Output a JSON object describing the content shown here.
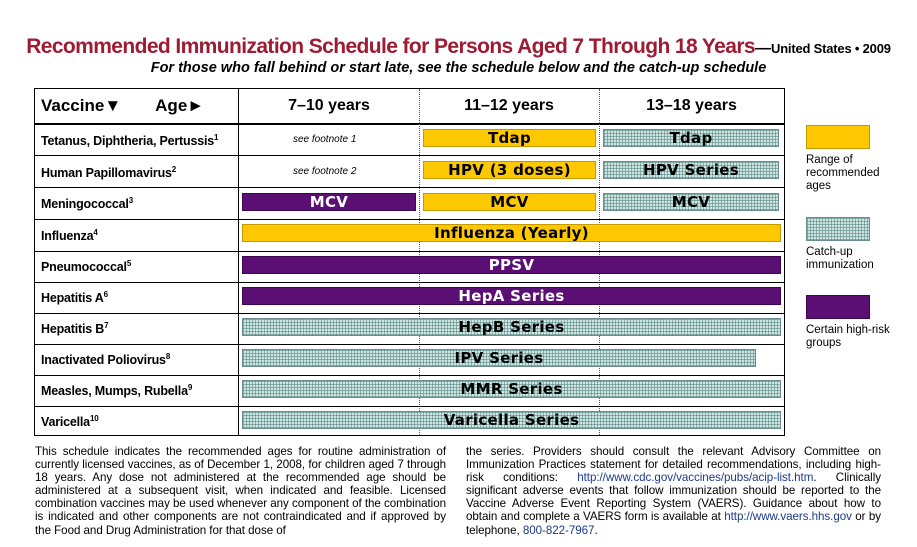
{
  "title": {
    "main": "Recommended Immunization Schedule for Persons Aged 7 Through 18 Years",
    "dash": "—",
    "suffix": "United States • 2009",
    "subtitle": "For those who fall behind or start late, see the schedule below and the catch-up schedule"
  },
  "table": {
    "header_vaccine": "Vaccine▼",
    "header_age": "Age►",
    "columns": [
      "7–10 years",
      "11–12 years",
      "13–18 years"
    ],
    "rows": [
      {
        "name": "Tetanus, Diphtheria, Pertussis",
        "sup": "1",
        "col1_note": "see footnote 1",
        "bars": [
          {
            "label": "Tdap",
            "type": "range"
          },
          {
            "label": "Tdap",
            "type": "catch"
          }
        ]
      },
      {
        "name": "Human Papillomavirus",
        "sup": "2",
        "col1_note": "see footnote 2",
        "bars": [
          {
            "label": "HPV (3 doses)",
            "type": "range"
          },
          {
            "label": "HPV Series",
            "type": "catch"
          }
        ]
      },
      {
        "name": "Meningococcal",
        "sup": "3",
        "bars": [
          {
            "label": "MCV",
            "type": "high"
          },
          {
            "label": "MCV",
            "type": "range"
          },
          {
            "label": "MCV",
            "type": "catch"
          }
        ]
      },
      {
        "name": "Influenza",
        "sup": "4",
        "bars": [
          {
            "label": "Influenza (Yearly)",
            "type": "range"
          }
        ]
      },
      {
        "name": "Pneumococcal",
        "sup": "5",
        "bars": [
          {
            "label": "PPSV",
            "type": "high"
          }
        ]
      },
      {
        "name": "Hepatitis A",
        "sup": "6",
        "bars": [
          {
            "label": "HepA Series",
            "type": "high"
          }
        ]
      },
      {
        "name": "Hepatitis B",
        "sup": "7",
        "bars": [
          {
            "label": "HepB Series",
            "type": "catch"
          }
        ]
      },
      {
        "name": "Inactivated Poliovirus",
        "sup": "8",
        "bars": [
          {
            "label": "IPV Series",
            "type": "catch"
          }
        ]
      },
      {
        "name": "Measles, Mumps, Rubella",
        "sup": "9",
        "bars": [
          {
            "label": "MMR Series",
            "type": "catch"
          }
        ]
      },
      {
        "name": "Varicella",
        "sup": "10",
        "bars": [
          {
            "label": "Varicella Series",
            "type": "catch"
          }
        ]
      }
    ]
  },
  "legend": [
    {
      "label": "Range of recommended ages",
      "type": "range"
    },
    {
      "label": "Catch-up immunization",
      "type": "catch"
    },
    {
      "label": "Certain high-risk groups",
      "type": "high"
    }
  ],
  "colors": {
    "title": "#9e1b34",
    "range": "#fdc800",
    "high": "#5b0f74",
    "catch": "#cfe6e2",
    "link": "#1a3a8a"
  },
  "footer": {
    "left": "This schedule indicates the recommended ages for routine administration of currently licensed vaccines, as of December 1, 2008, for children aged 7 through 18 years. Any dose not administered at the recommended age should be administered at a subsequent visit, when indicated and feasible. Licensed combination vaccines may be used whenever any component of the combination is indicated and other components are not contraindicated and if approved by the Food and Drug Administration for that dose of",
    "right_text_1": "the series. Providers should consult the relevant Advisory Committee on Immunization Practices statement for detailed recommendations, including high-risk conditions:",
    "right_link_1": "http://www.cdc.gov/vaccines/pubs/acip-list.htm",
    "right_text_2": ". Clinically significant adverse events that follow immunization should be reported to the Vaccine Adverse Event Reporting System (VAERS). Guidance about how to obtain and complete a VAERS form is available at",
    "right_link_2": "http://www.vaers.hhs.gov",
    "right_text_3": "or by telephone,",
    "right_link_3": "800-822-7967",
    "right_text_4": "."
  }
}
